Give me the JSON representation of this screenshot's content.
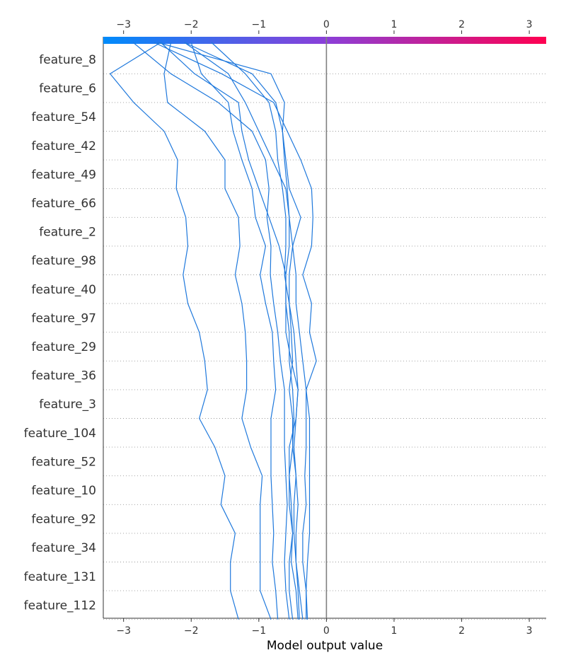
{
  "chart_data": {
    "type": "line",
    "orientation": "horizontal-decision-plot",
    "xlabel": "Model output value",
    "xlim": [
      -3.3,
      3.25
    ],
    "xticks": [
      -3,
      -2,
      -1,
      0,
      1,
      2,
      3
    ],
    "xtick_labels": [
      "−3",
      "−2",
      "−1",
      "0",
      "1",
      "2",
      "3"
    ],
    "base_value": 0,
    "colorbar": {
      "low_color": "#008bfb",
      "mid_color": "#8a3fd9",
      "high_color": "#ff0051",
      "position": "top"
    },
    "line_color": "#1e78dc",
    "grid": "dotted-horizontal",
    "features": [
      "feature_8",
      "feature_6",
      "feature_54",
      "feature_42",
      "feature_49",
      "feature_66",
      "feature_2",
      "feature_98",
      "feature_40",
      "feature_97",
      "feature_29",
      "feature_36",
      "feature_3",
      "feature_104",
      "feature_52",
      "feature_10",
      "feature_92",
      "feature_34",
      "feature_131",
      "feature_112"
    ],
    "series": [
      {
        "values": [
          -2.86,
          -2.3,
          -1.6,
          -1.1,
          -0.9,
          -0.85,
          -0.88,
          -0.82,
          -0.83,
          -0.78,
          -0.72,
          -0.68,
          -0.62,
          -0.62,
          -0.62,
          -0.6,
          -0.58,
          -0.6,
          -0.62,
          -0.6,
          -0.55
        ]
      },
      {
        "values": [
          -2.45,
          -3.2,
          -2.85,
          -2.4,
          -2.2,
          -2.22,
          -2.08,
          -2.05,
          -2.12,
          -2.05,
          -1.88,
          -1.8,
          -1.76,
          -1.88,
          -1.65,
          -1.5,
          -1.56,
          -1.35,
          -1.42,
          -1.42,
          -1.3
        ]
      },
      {
        "values": [
          -2.3,
          -2.4,
          -2.35,
          -1.8,
          -1.5,
          -1.5,
          -1.3,
          -1.28,
          -1.35,
          -1.25,
          -1.2,
          -1.18,
          -1.18,
          -1.25,
          -1.12,
          -0.95,
          -0.98,
          -0.98,
          -0.98,
          -0.98,
          -0.82
        ]
      },
      {
        "values": [
          -2.0,
          -1.85,
          -1.45,
          -1.38,
          -1.25,
          -1.1,
          -1.05,
          -0.9,
          -0.98,
          -0.9,
          -0.8,
          -0.78,
          -0.75,
          -0.82,
          -0.82,
          -0.82,
          -0.8,
          -0.78,
          -0.8,
          -0.75,
          -0.72
        ]
      },
      {
        "values": [
          -1.7,
          -1.2,
          -0.85,
          -0.75,
          -0.72,
          -0.65,
          -0.6,
          -0.6,
          -0.62,
          -0.55,
          -0.52,
          -0.5,
          -0.55,
          -0.5,
          -0.5,
          -0.55,
          -0.55,
          -0.5,
          -0.55,
          -0.55,
          -0.5
        ]
      },
      {
        "values": [
          -2.1,
          -1.45,
          -1.2,
          -1.0,
          -0.8,
          -0.6,
          -0.55,
          -0.5,
          -0.45,
          -0.45,
          -0.4,
          -0.35,
          -0.3,
          -0.3,
          -0.3,
          -0.32,
          -0.3,
          -0.35,
          -0.35,
          -0.3,
          -0.28
        ]
      },
      {
        "values": [
          -2.45,
          -1.95,
          -1.3,
          -1.25,
          -1.15,
          -1.0,
          -0.85,
          -0.7,
          -0.6,
          -0.6,
          -0.55,
          -0.55,
          -0.5,
          -0.48,
          -0.5,
          -0.45,
          -0.48,
          -0.48,
          -0.45,
          -0.4,
          -0.35
        ]
      },
      {
        "values": [
          -2.1,
          -1.1,
          -0.75,
          -0.65,
          -0.6,
          -0.55,
          -0.38,
          -0.5,
          -0.55,
          -0.55,
          -0.48,
          -0.45,
          -0.42,
          -0.45,
          -0.55,
          -0.55,
          -0.52,
          -0.5,
          -0.52,
          -0.45,
          -0.42
        ]
      },
      {
        "values": [
          -2.5,
          -0.82,
          -0.62,
          -0.65,
          -0.62,
          -0.58,
          -0.55,
          -0.55,
          -0.6,
          -0.6,
          -0.6,
          -0.52,
          -0.42,
          -0.45,
          -0.48,
          -0.45,
          -0.42,
          -0.45,
          -0.45,
          -0.42,
          -0.4
        ]
      },
      {
        "values": [
          -2.55,
          -1.55,
          -0.78,
          -0.58,
          -0.38,
          -0.22,
          -0.2,
          -0.22,
          -0.35,
          -0.22,
          -0.25,
          -0.15,
          -0.3,
          -0.25,
          -0.25,
          -0.25,
          -0.25,
          -0.25,
          -0.28,
          -0.3,
          -0.3
        ]
      }
    ]
  }
}
